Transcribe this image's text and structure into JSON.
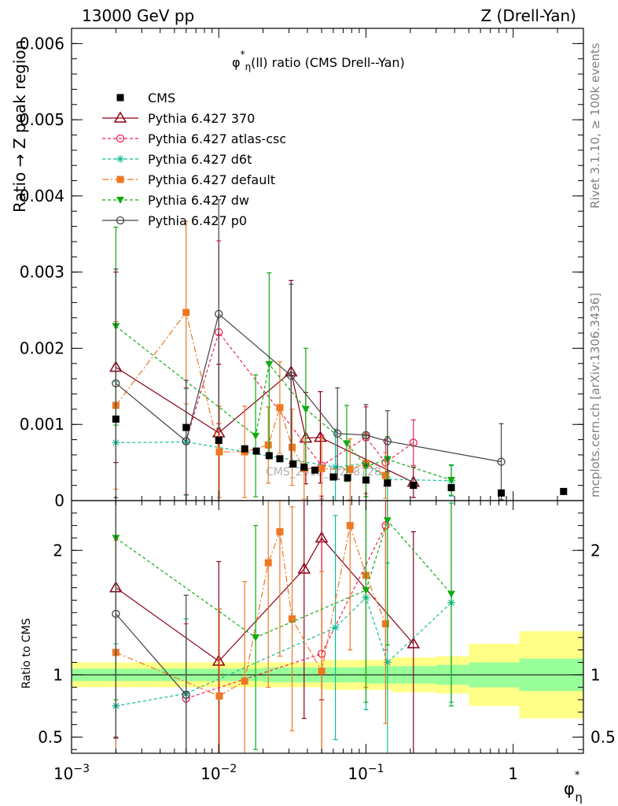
{
  "header": {
    "left": "13000 GeV pp",
    "right": "Z (Drell-Yan)"
  },
  "side_labels": {
    "rivet": "Rivet 3.1.10, ≥ 100k events",
    "mcplots": "mcplots.cern.ch [arXiv:1306.3436]"
  },
  "watermark": "CMS_2013_I1258128",
  "colors": {
    "CMS": "#000000",
    "370": "#8b0015",
    "atlas-csc": "#ee2255",
    "d6t": "#11bb99",
    "default": "#ee7722",
    "dw": "#11aa11",
    "p0": "#444444",
    "band_inner": "#99ff99",
    "band_outer": "#ffff88"
  },
  "chart_data": [
    {
      "type": "scatter",
      "title_parts": [
        "φ",
        "*",
        "η",
        "(ll) ratio (CMS Drell--Yan)"
      ],
      "ylabel": "Ratio → Z peak region",
      "xlabel_parts": [
        "φ",
        "*",
        "η"
      ],
      "xscale": "log",
      "xlim": [
        0.001,
        3.0
      ],
      "ylim": [
        0,
        0.0062
      ],
      "y_ticks": [
        "0",
        "0.001",
        "0.002",
        "0.003",
        "0.004",
        "0.005",
        "0.006"
      ],
      "x_ticks": [
        {
          "base": "10",
          "exp": "−3"
        },
        {
          "base": "10",
          "exp": "−2"
        },
        {
          "base": "10",
          "exp": "−1"
        },
        {
          "base": "1",
          "exp": ""
        }
      ],
      "legend_position": "top-left",
      "series": [
        {
          "name": "CMS",
          "key": "CMS",
          "marker": "square-filled",
          "line": "none",
          "x": [
            0.002,
            0.006,
            0.01,
            0.015,
            0.018,
            0.022,
            0.026,
            0.032,
            0.038,
            0.045,
            0.06,
            0.075,
            0.1,
            0.14,
            0.21,
            0.38,
            0.83,
            2.2
          ],
          "y": [
            0.00107,
            0.00096,
            0.00079,
            0.00068,
            0.00065,
            0.00059,
            0.00055,
            0.00048,
            0.00044,
            0.0004,
            0.00031,
            0.0003,
            0.00027,
            0.00023,
            0.0002,
            0.00017,
            0.0001,
            0.00012
          ]
        },
        {
          "name": "Pythia 6.427 370",
          "key": "370",
          "marker": "triangle-open",
          "line": "solid",
          "x": [
            0.002,
            0.01,
            0.031,
            0.039,
            0.049,
            0.21
          ],
          "y": [
            0.00175,
            0.00089,
            0.00169,
            0.00082,
            0.00083,
            0.00024
          ],
          "err": [
            0.00125,
            0.0009,
            0.0012,
            0.0006,
            0.0006,
            0.0002
          ]
        },
        {
          "name": "Pythia 6.427 atlas-csc",
          "key": "atlas-csc",
          "marker": "circle-open",
          "line": "dashed",
          "x": [
            0.006,
            0.01,
            0.05,
            0.1,
            0.136,
            0.21
          ],
          "y": [
            0.00078,
            0.00221,
            0.00046,
            0.00083,
            0.0005,
            0.00076
          ],
          "err": [
            0.0007,
            0.0012,
            0.0004,
            0.0004,
            0.0003,
            0.0003
          ]
        },
        {
          "name": "Pythia 6.427 d6t",
          "key": "d6t",
          "marker": "star",
          "line": "dashed",
          "x": [
            0.002,
            0.006,
            0.062,
            0.1,
            0.14,
            0.38
          ],
          "y": [
            0.00076,
            0.00077,
            0.00044,
            0.00049,
            0.00028,
            0.00026
          ],
          "err": [
            0.0008,
            0.0007,
            0.0005,
            0.0004,
            0.0003,
            0.0002
          ]
        },
        {
          "name": "Pythia 6.427 default",
          "key": "default",
          "marker": "square-filled",
          "line": "dashdot",
          "x": [
            0.002,
            0.006,
            0.0101,
            0.015,
            0.0217,
            0.026,
            0.0315,
            0.038,
            0.05,
            0.078,
            0.1,
            0.136
          ],
          "y": [
            0.00125,
            0.00247,
            0.00064,
            0.00064,
            0.00073,
            0.00122,
            0.0007,
            0.00042,
            0.00042,
            0.00041,
            0.00049,
            0.00033
          ],
          "err": [
            0.0011,
            0.0012,
            0.0006,
            0.0006,
            0.0005,
            0.0006,
            0.0005,
            0.0004,
            0.0004,
            0.0004,
            0.0004,
            0.0003
          ]
        },
        {
          "name": "Pythia 6.427 dw",
          "key": "dw",
          "marker": "triangle-down-filled",
          "line": "dashed",
          "x": [
            0.002,
            0.0178,
            0.022,
            0.039,
            0.074,
            0.1,
            0.14,
            0.38
          ],
          "y": [
            0.00229,
            0.00085,
            0.00179,
            0.0012,
            0.00075,
            0.00045,
            0.00054,
            0.00027
          ],
          "err": [
            0.0013,
            0.0008,
            0.0012,
            0.0008,
            0.0005,
            0.0004,
            0.0003,
            0.0002
          ]
        },
        {
          "name": "Pythia 6.427 p0",
          "key": "p0",
          "marker": "circle-open",
          "line": "solid",
          "x": [
            0.002,
            0.006,
            0.01,
            0.031,
            0.064,
            0.1,
            0.14,
            0.83
          ],
          "y": [
            0.00154,
            0.00078,
            0.00245,
            0.00164,
            0.00088,
            0.00086,
            0.00078,
            0.00051
          ],
          "err": [
            0.0015,
            0.0008,
            0.0015,
            0.0012,
            0.0006,
            0.0004,
            0.0004,
            0.0005
          ]
        }
      ]
    },
    {
      "type": "line",
      "ylabel": "Ratio to CMS",
      "xscale": "log",
      "xlim": [
        0.001,
        3.0
      ],
      "ylim": [
        0.37,
        2.4
      ],
      "y_ticks": [
        "0.5",
        "1",
        "2"
      ],
      "reference_line": 1.0,
      "uncertainty_bands": {
        "x_edges": [
          0.001,
          0.004,
          0.008,
          0.012,
          0.02,
          0.035,
          0.05,
          0.1,
          0.15,
          0.3,
          0.5,
          1.1,
          3.0
        ],
        "inner": [
          0.05,
          0.05,
          0.05,
          0.05,
          0.06,
          0.06,
          0.06,
          0.07,
          0.07,
          0.08,
          0.1,
          0.13
        ],
        "outer": [
          0.1,
          0.1,
          0.1,
          0.1,
          0.1,
          0.1,
          0.12,
          0.12,
          0.14,
          0.15,
          0.25,
          0.35
        ]
      },
      "series": [
        {
          "name": "Pythia 6.427 370",
          "key": "370",
          "marker": "triangle-open",
          "line": "solid",
          "x": [
            0.002,
            0.01,
            0.038,
            0.05,
            0.21
          ],
          "y": [
            1.7,
            1.11,
            1.85,
            2.1,
            1.25
          ],
          "err": [
            1.2,
            0.8,
            1.2,
            1.3,
            0.9
          ]
        },
        {
          "name": "Pythia 6.427 atlas-csc",
          "key": "atlas-csc",
          "marker": "circle-open",
          "line": "dashed",
          "x": [
            0.006,
            0.05,
            0.136
          ],
          "y": [
            0.81,
            1.17,
            2.2
          ],
          "err": [
            0.6,
            0.9,
            1.0
          ]
        },
        {
          "name": "Pythia 6.427 d6t",
          "key": "d6t",
          "marker": "star",
          "line": "dashed",
          "x": [
            0.002,
            0.006,
            0.062,
            0.1,
            0.14,
            0.38
          ],
          "y": [
            0.75,
            0.85,
            1.38,
            1.62,
            1.1,
            1.58
          ],
          "err": [
            0.5,
            0.6,
            0.9,
            0.9,
            0.8,
            0.8
          ]
        },
        {
          "name": "Pythia 6.427 default",
          "key": "default",
          "marker": "square-filled",
          "line": "dashdot",
          "x": [
            0.002,
            0.0101,
            0.015,
            0.0217,
            0.026,
            0.0315,
            0.05,
            0.078,
            0.1,
            0.136
          ],
          "y": [
            1.18,
            0.83,
            0.95,
            1.9,
            2.15,
            1.45,
            1.03,
            2.2,
            1.8,
            1.41
          ],
          "err": [
            0.9,
            0.7,
            0.8,
            1.0,
            1.0,
            0.9,
            0.8,
            1.0,
            0.9,
            0.8
          ]
        },
        {
          "name": "Pythia 6.427 dw",
          "key": "dw",
          "marker": "triangle-down-filled",
          "line": "dashed",
          "x": [
            0.002,
            0.0178,
            0.1,
            0.14,
            0.38
          ],
          "y": [
            2.1,
            1.3,
            1.68,
            2.24,
            1.65
          ],
          "err": [
            1.3,
            0.9,
            0.9,
            1.0,
            0.9
          ]
        },
        {
          "name": "Pythia 6.427 p0",
          "key": "p0",
          "marker": "circle-open",
          "line": "solid",
          "x": [
            0.002,
            0.006
          ],
          "y": [
            1.49,
            0.84
          ],
          "err": [
            1.0,
            0.8
          ]
        }
      ]
    }
  ]
}
